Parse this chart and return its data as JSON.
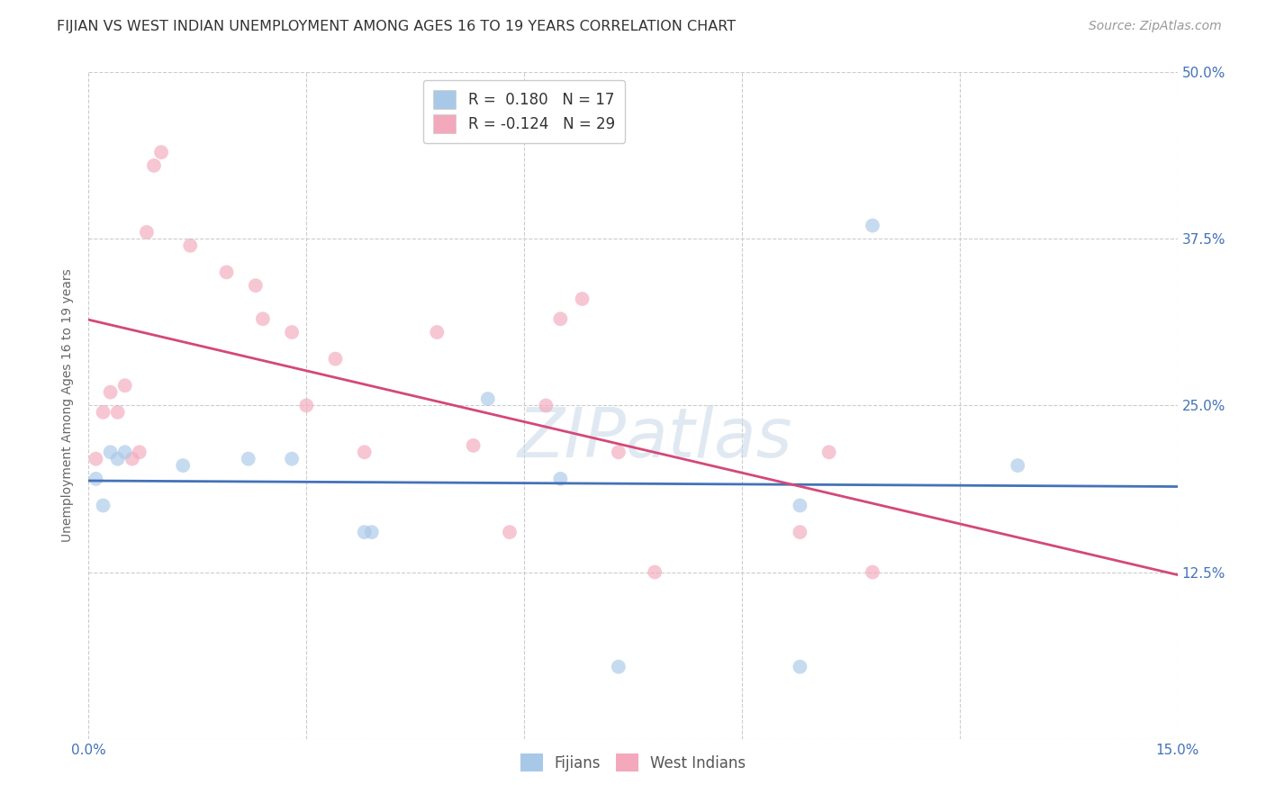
{
  "title": "FIJIAN VS WEST INDIAN UNEMPLOYMENT AMONG AGES 16 TO 19 YEARS CORRELATION CHART",
  "source": "Source: ZipAtlas.com",
  "ylabel": "Unemployment Among Ages 16 to 19 years",
  "xlim": [
    0.0,
    0.15
  ],
  "ylim": [
    0.0,
    0.5
  ],
  "xticks": [
    0.0,
    0.03,
    0.06,
    0.09,
    0.12,
    0.15
  ],
  "xtick_labels": [
    "0.0%",
    "",
    "",
    "",
    "",
    "15.0%"
  ],
  "yticks": [
    0.0,
    0.125,
    0.25,
    0.375,
    0.5
  ],
  "ytick_labels": [
    "",
    "12.5%",
    "25.0%",
    "37.5%",
    "50.0%"
  ],
  "fijian_x": [
    0.001,
    0.002,
    0.003,
    0.004,
    0.005,
    0.013,
    0.022,
    0.028,
    0.038,
    0.039,
    0.055,
    0.065,
    0.073,
    0.098,
    0.098,
    0.108,
    0.128
  ],
  "fijian_y": [
    0.195,
    0.175,
    0.215,
    0.21,
    0.215,
    0.205,
    0.21,
    0.21,
    0.155,
    0.155,
    0.255,
    0.195,
    0.054,
    0.175,
    0.054,
    0.385,
    0.205
  ],
  "west_indian_x": [
    0.001,
    0.002,
    0.003,
    0.004,
    0.005,
    0.006,
    0.007,
    0.008,
    0.009,
    0.01,
    0.014,
    0.019,
    0.023,
    0.024,
    0.028,
    0.03,
    0.034,
    0.038,
    0.048,
    0.053,
    0.058,
    0.063,
    0.065,
    0.068,
    0.073,
    0.078,
    0.098,
    0.102,
    0.108
  ],
  "west_indian_y": [
    0.21,
    0.245,
    0.26,
    0.245,
    0.265,
    0.21,
    0.215,
    0.38,
    0.43,
    0.44,
    0.37,
    0.35,
    0.34,
    0.315,
    0.305,
    0.25,
    0.285,
    0.215,
    0.305,
    0.22,
    0.155,
    0.25,
    0.315,
    0.33,
    0.215,
    0.125,
    0.155,
    0.215,
    0.125
  ],
  "fijian_R": 0.18,
  "fijian_N": 17,
  "west_indian_R": -0.124,
  "west_indian_N": 29,
  "fijian_color": "#a8c8e8",
  "west_indian_color": "#f4a8bc",
  "fijian_line_color": "#4472b8",
  "west_indian_line_color": "#d44878",
  "background_color": "#ffffff",
  "grid_color": "#cccccc",
  "marker_size": 130,
  "marker_alpha": 0.65,
  "watermark": "ZIPatlas",
  "legend_labels": [
    "Fijians",
    "West Indians"
  ]
}
